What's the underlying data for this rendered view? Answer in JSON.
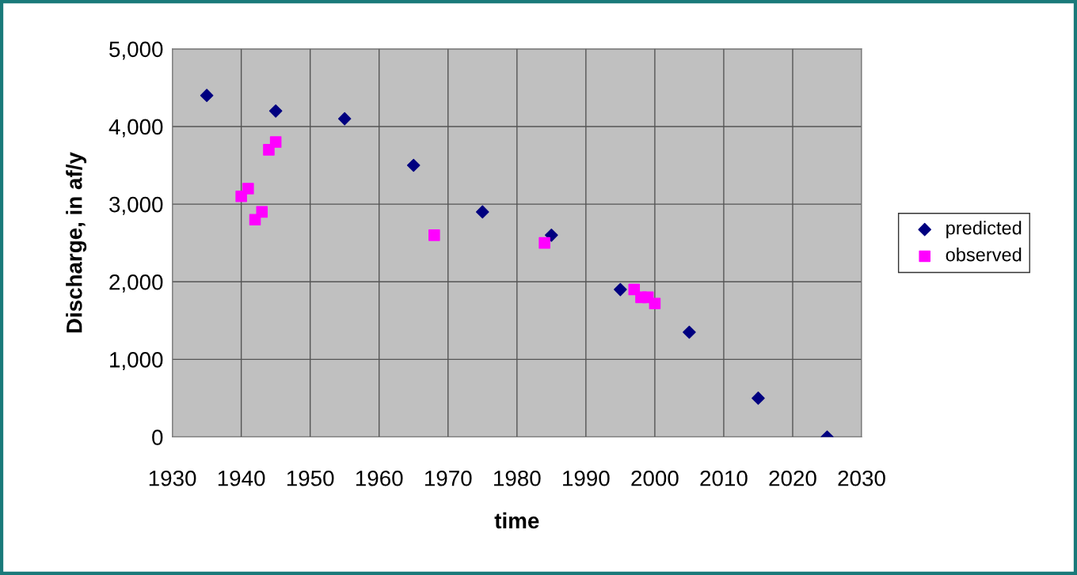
{
  "chart_data": {
    "type": "scatter",
    "xlabel": "time",
    "ylabel": "Discharge, in af/y",
    "xlim": [
      1930,
      2030
    ],
    "xticks": [
      1930,
      1940,
      1950,
      1960,
      1970,
      1980,
      1990,
      2000,
      2010,
      2020,
      2030
    ],
    "ylim": [
      0,
      5000
    ],
    "yticks": [
      {
        "value": 0,
        "label": "0"
      },
      {
        "value": 1000,
        "label": "1,000"
      },
      {
        "value": 2000,
        "label": "2,000"
      },
      {
        "value": 3000,
        "label": "3,000"
      },
      {
        "value": 4000,
        "label": "4,000"
      },
      {
        "value": 5000,
        "label": "5,000"
      }
    ],
    "grid": true,
    "legend": "right",
    "series": [
      {
        "name": "predicted",
        "color": "#000080",
        "marker": "diamond",
        "x": [
          1935,
          1945,
          1955,
          1965,
          1975,
          1985,
          1995,
          2005,
          2015,
          2025
        ],
        "values": [
          4400,
          4200,
          4100,
          3500,
          2900,
          2600,
          1900,
          1350,
          500,
          0
        ]
      },
      {
        "name": "observed",
        "color": "#ff00ff",
        "marker": "square",
        "x": [
          1940,
          1941,
          1942,
          1943,
          1944,
          1945,
          1968,
          1984,
          1997,
          1998,
          1999,
          2000
        ],
        "values": [
          3100,
          3200,
          2800,
          2900,
          3700,
          3800,
          2600,
          2500,
          1900,
          1800,
          1800,
          1720
        ]
      }
    ]
  }
}
